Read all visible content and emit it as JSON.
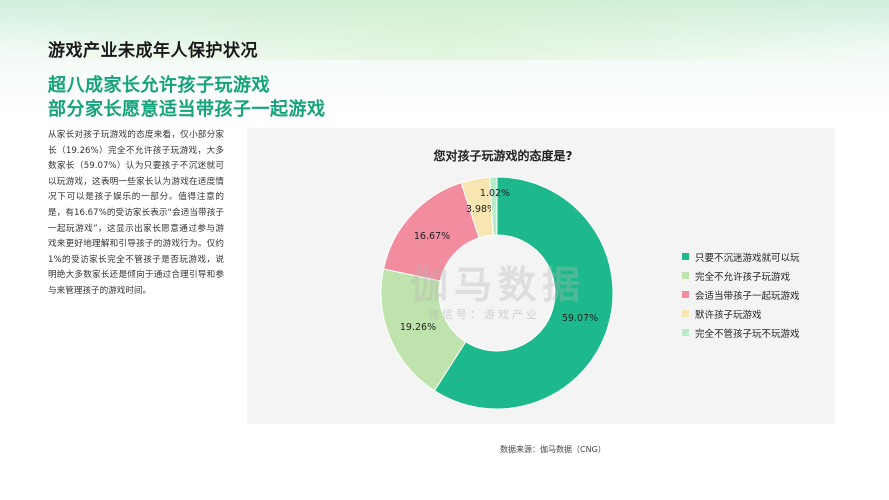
{
  "page": {
    "section_title": "游戏产业未成年人保护状况",
    "headline_line1": "超八成家长允许孩子玩游戏",
    "headline_line2": "部分家长愿意适当带孩子一起游戏",
    "body": "从家长对孩子玩游戏的态度来看，仅小部分家长（19.26%）完全不允许孩子玩游戏，大多数家长（59.07%）认为只要孩子不沉迷就可以玩游戏，这表明一些家长认为游戏在适度情况下可以是孩子娱乐的一部分。值得注意的是，有16.67%的受访家长表示“会适当带孩子一起玩游戏”，这显示出家长愿意通过参与游戏来更好地理解和引导孩子的游戏行为。仅约1%的受访家长完全不管孩子是否玩游戏，说明绝大多数家长还是倾向于通过合理引导和参与来管理孩子的游戏时间。",
    "source": "数据来源：伽马数据（CNG）",
    "watermark": "伽马数据",
    "watermark_sub": "微信号：游戏产业"
  },
  "chart_data": {
    "type": "pie",
    "donut": true,
    "title": "您对孩子玩游戏的态度是?",
    "legend_position": "right",
    "slices": [
      {
        "label": "只要不沉迷游戏就可以玩",
        "value": 59.07,
        "display": "59.07%",
        "color": "#1db98d"
      },
      {
        "label": "完全不允许孩子玩游戏",
        "value": 19.26,
        "display": "19.26%",
        "color": "#bfe3ad"
      },
      {
        "label": "会适当带孩子一起玩游戏",
        "value": 16.67,
        "display": "16.67%",
        "color": "#f28da0"
      },
      {
        "label": "默许孩子玩游戏",
        "value": 3.98,
        "display": "3.98%",
        "color": "#f7e6b2"
      },
      {
        "label": "完全不管孩子玩不玩游戏",
        "value": 1.02,
        "display": "1.02%",
        "color": "#b7ebc9"
      }
    ]
  }
}
